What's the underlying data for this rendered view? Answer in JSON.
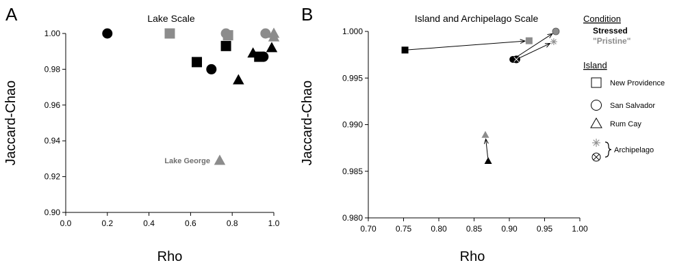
{
  "chart_data": [
    {
      "panel": "A",
      "type": "scatter",
      "title": "Lake Scale",
      "xlabel": "Rho",
      "ylabel": "Jaccard-Chao",
      "xlim": [
        0.0,
        1.0
      ],
      "ylim": [
        0.9,
        1.0
      ],
      "xticks": [
        "0.0",
        "0.2",
        "0.4",
        "0.6",
        "0.8",
        "1.0"
      ],
      "yticks": [
        "0.90",
        "0.92",
        "0.94",
        "0.96",
        "0.98",
        "1.00"
      ],
      "annotation": "Lake George",
      "points": [
        {
          "x": 0.2,
          "y": 1.0,
          "shape": "circle",
          "fill": "#000000"
        },
        {
          "x": 0.5,
          "y": 1.0,
          "shape": "square",
          "fill": "#8c8c8c"
        },
        {
          "x": 0.63,
          "y": 0.984,
          "shape": "square",
          "fill": "#000000"
        },
        {
          "x": 0.7,
          "y": 0.98,
          "shape": "circle",
          "fill": "#000000"
        },
        {
          "x": 0.77,
          "y": 1.0,
          "shape": "circle",
          "fill": "#8c8c8c"
        },
        {
          "x": 0.78,
          "y": 0.999,
          "shape": "square",
          "fill": "#8c8c8c"
        },
        {
          "x": 0.77,
          "y": 0.993,
          "shape": "square",
          "fill": "#000000"
        },
        {
          "x": 0.83,
          "y": 0.974,
          "shape": "triangle",
          "fill": "#000000"
        },
        {
          "x": 0.9,
          "y": 0.989,
          "shape": "triangle",
          "fill": "#000000"
        },
        {
          "x": 0.93,
          "y": 0.987,
          "shape": "square",
          "fill": "#000000"
        },
        {
          "x": 0.95,
          "y": 0.987,
          "shape": "circle",
          "fill": "#000000"
        },
        {
          "x": 0.96,
          "y": 1.0,
          "shape": "circle",
          "fill": "#8c8c8c"
        },
        {
          "x": 0.99,
          "y": 0.992,
          "shape": "triangle",
          "fill": "#000000"
        },
        {
          "x": 1.0,
          "y": 1.0,
          "shape": "triangle",
          "fill": "#8c8c8c"
        },
        {
          "x": 1.0,
          "y": 0.998,
          "shape": "triangle",
          "fill": "#8c8c8c"
        },
        {
          "x": 0.74,
          "y": 0.929,
          "shape": "triangle",
          "fill": "#8c8c8c"
        }
      ]
    },
    {
      "panel": "B",
      "type": "scatter",
      "title": "Island and Archipelago Scale",
      "xlabel": "Rho",
      "ylabel": "Jaccard-Chao",
      "xlim": [
        0.7,
        1.0
      ],
      "ylim": [
        0.98,
        1.0
      ],
      "xticks": [
        "0.70",
        "0.75",
        "0.80",
        "0.85",
        "0.90",
        "0.95",
        "1.00"
      ],
      "yticks": [
        "0.980",
        "0.985",
        "0.990",
        "0.995",
        "1.000"
      ],
      "points": [
        {
          "id": "np_s",
          "x": 0.752,
          "y": 0.998,
          "shape": "square",
          "fill": "#000000"
        },
        {
          "id": "np_p",
          "x": 0.928,
          "y": 0.999,
          "shape": "square",
          "fill": "#8c8c8c"
        },
        {
          "id": "ss_s",
          "x": 0.905,
          "y": 0.997,
          "shape": "circle",
          "fill": "#000000"
        },
        {
          "id": "ss_p",
          "x": 0.966,
          "y": 1.0,
          "shape": "circle-open",
          "fill": "#8c8c8c"
        },
        {
          "id": "rc_s",
          "x": 0.87,
          "y": 0.9861,
          "shape": "triangle",
          "fill": "#000000"
        },
        {
          "id": "rc_p",
          "x": 0.866,
          "y": 0.9889,
          "shape": "triangle",
          "fill": "#8c8c8c"
        },
        {
          "id": "ar_s",
          "x": 0.91,
          "y": 0.997,
          "shape": "circle-x",
          "fill": "#000000"
        },
        {
          "id": "ar_p",
          "x": 0.963,
          "y": 0.9989,
          "shape": "asterisk",
          "fill": "#8c8c8c"
        }
      ],
      "arrows": [
        {
          "from": "np_s",
          "to": "np_p"
        },
        {
          "from": "ss_s",
          "to": "ss_p"
        },
        {
          "from": "ar_s",
          "to": "ar_p"
        },
        {
          "from": "rc_s",
          "to": "rc_p"
        }
      ]
    }
  ],
  "legend": {
    "condition_title": "Condition",
    "stressed_label": "Stressed",
    "pristine_label": "\"Pristine\"",
    "island_title": "Island",
    "items": [
      {
        "shape": "square",
        "label": "New Providence"
      },
      {
        "shape": "circle",
        "label": "San Salvador"
      },
      {
        "shape": "triangle",
        "label": "Rum Cay"
      }
    ],
    "archipelago_label": "Archipelago"
  },
  "colors": {
    "stressed": "#000000",
    "pristine": "#8c8c8c"
  }
}
